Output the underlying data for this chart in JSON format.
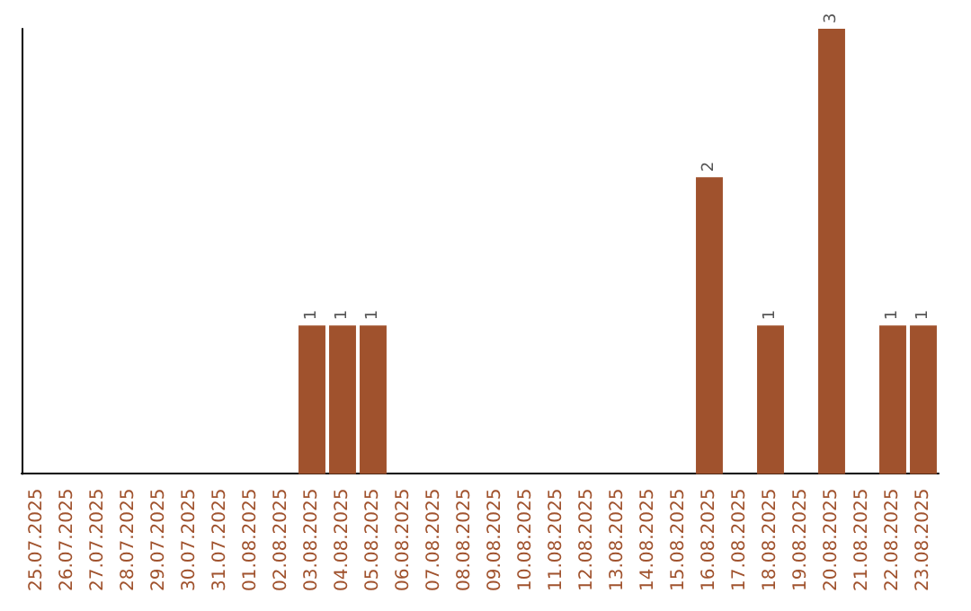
{
  "chart_data": {
    "type": "bar",
    "categories": [
      "25.07.2025",
      "26.07.2025",
      "27.07.2025",
      "28.07.2025",
      "29.07.2025",
      "30.07.2025",
      "31.07.2025",
      "01.08.2025",
      "02.08.2025",
      "03.08.2025",
      "04.08.2025",
      "05.08.2025",
      "06.08.2025",
      "07.08.2025",
      "08.08.2025",
      "09.08.2025",
      "10.08.2025",
      "11.08.2025",
      "12.08.2025",
      "13.08.2025",
      "14.08.2025",
      "15.08.2025",
      "16.08.2025",
      "17.08.2025",
      "18.08.2025",
      "19.08.2025",
      "20.08.2025",
      "21.08.2025",
      "22.08.2025",
      "23.08.2025"
    ],
    "values": [
      0,
      0,
      0,
      0,
      0,
      0,
      0,
      0,
      0,
      1,
      1,
      1,
      0,
      0,
      0,
      0,
      0,
      0,
      0,
      0,
      0,
      0,
      2,
      0,
      1,
      0,
      3,
      0,
      1,
      1
    ],
    "value_labels": [
      null,
      null,
      null,
      null,
      null,
      null,
      null,
      null,
      null,
      "1",
      "1",
      "1",
      null,
      null,
      null,
      null,
      null,
      null,
      null,
      null,
      null,
      null,
      "2",
      null,
      "1",
      null,
      "3",
      null,
      "1",
      "1"
    ],
    "color": "#a0522d",
    "tick_labels": "x"
  }
}
